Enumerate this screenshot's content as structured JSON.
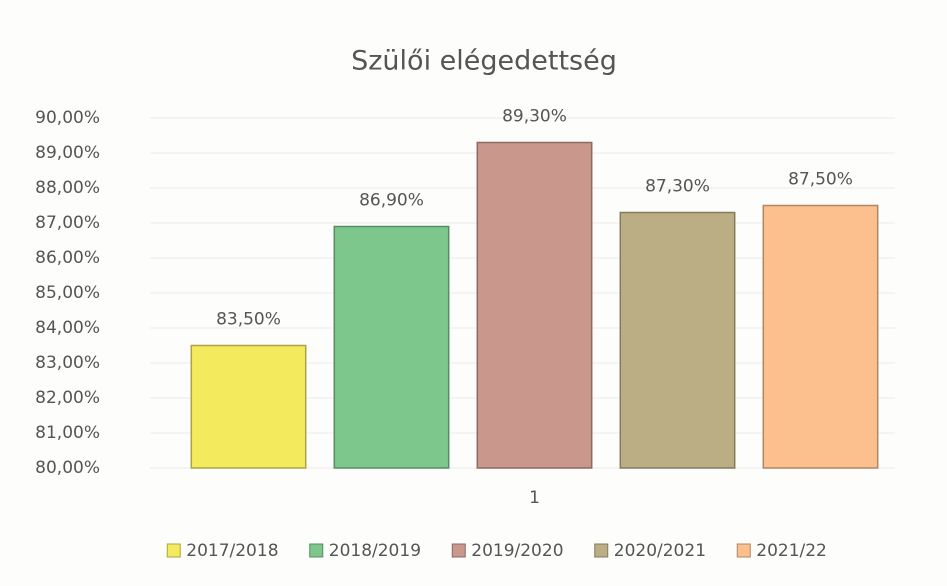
{
  "chart_data": {
    "type": "bar",
    "title": "Szülői elégedettség",
    "categories": [
      "1"
    ],
    "series": [
      {
        "name": "2017/2018",
        "color": "#f4ea5e",
        "values": [
          83.5
        ],
        "value_labels": [
          "83,50%"
        ]
      },
      {
        "name": "2018/2019",
        "color": "#7dc68c",
        "values": [
          86.9
        ],
        "value_labels": [
          "86,90%"
        ]
      },
      {
        "name": "2019/2020",
        "color": "#c9978b",
        "values": [
          89.3
        ],
        "value_labels": [
          "89,30%"
        ]
      },
      {
        "name": "2020/2021",
        "color": "#bcae84",
        "values": [
          87.3
        ],
        "value_labels": [
          "87,30%"
        ]
      },
      {
        "name": "2021/22",
        "color": "#fbc08e",
        "values": [
          87.5
        ],
        "value_labels": [
          "87,50%"
        ]
      }
    ],
    "ylim": [
      80,
      90
    ],
    "yticks": [
      {
        "value": 80,
        "label": "80,00%"
      },
      {
        "value": 81,
        "label": "81,00%"
      },
      {
        "value": 82,
        "label": "82,00%"
      },
      {
        "value": 83,
        "label": "83,00%"
      },
      {
        "value": 84,
        "label": "84,00%"
      },
      {
        "value": 85,
        "label": "85,00%"
      },
      {
        "value": 86,
        "label": "86,00%"
      },
      {
        "value": 87,
        "label": "87,00%"
      },
      {
        "value": 88,
        "label": "88,00%"
      },
      {
        "value": 89,
        "label": "89,00%"
      },
      {
        "value": 90,
        "label": "90,00%"
      }
    ],
    "grid": true,
    "legend": "bottom"
  }
}
